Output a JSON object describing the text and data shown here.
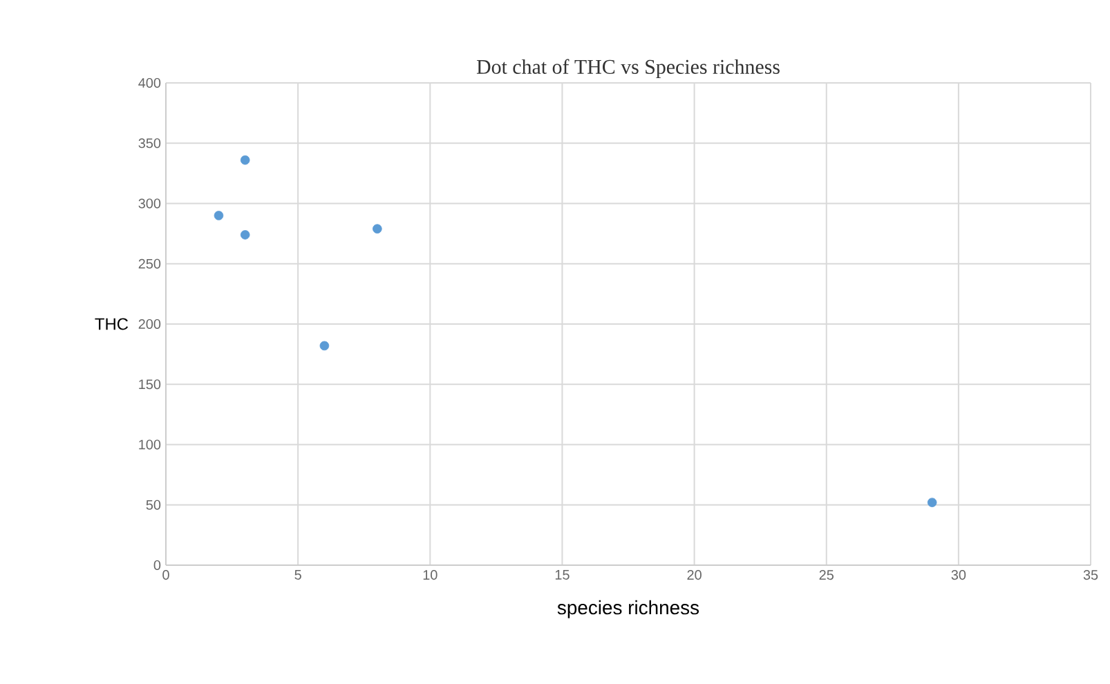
{
  "chart_data": {
    "type": "scatter",
    "title": "Dot chat of THC vs Species richness",
    "xlabel": "species richness",
    "ylabel": "THC",
    "series": [
      {
        "color": "#5b9bd5",
        "x": [
          2,
          3,
          3,
          6,
          8,
          29
        ],
        "values": [
          290,
          336,
          274,
          182,
          279,
          52
        ]
      }
    ],
    "xlim": [
      0,
      35
    ],
    "xticks": [
      0,
      5,
      10,
      15,
      20,
      25,
      30,
      35
    ],
    "ylim": [
      0,
      400
    ],
    "yticks": [
      0,
      50,
      100,
      150,
      200,
      250,
      300,
      350,
      400
    ],
    "grid": true,
    "marker": "circle"
  }
}
